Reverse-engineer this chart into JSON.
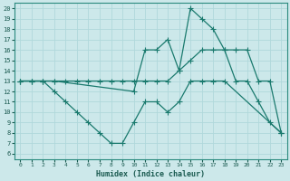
{
  "xlabel": "Humidex (Indice chaleur)",
  "bg_color": "#cce8ea",
  "grid_color": "#b0d8db",
  "line_color": "#1a7a6e",
  "xlim_min": -0.5,
  "xlim_max": 23.5,
  "ylim_min": 5.5,
  "ylim_max": 20.5,
  "yticks": [
    6,
    7,
    8,
    9,
    10,
    11,
    12,
    13,
    14,
    15,
    16,
    17,
    18,
    19,
    20
  ],
  "xticks": [
    0,
    1,
    2,
    3,
    4,
    5,
    6,
    7,
    8,
    9,
    10,
    11,
    12,
    13,
    14,
    15,
    16,
    17,
    18,
    19,
    20,
    21,
    22,
    23
  ],
  "line1_x": [
    0,
    1,
    2,
    3,
    10,
    11,
    12,
    13,
    14,
    15,
    16,
    17,
    18,
    19,
    20,
    21,
    22,
    23
  ],
  "line1_y": [
    13,
    13,
    13,
    13,
    12,
    16,
    16,
    17,
    14,
    20,
    19,
    18,
    16,
    13,
    13,
    11,
    9,
    8
  ],
  "line2_x": [
    0,
    1,
    2,
    3,
    4,
    5,
    6,
    7,
    8,
    9,
    10,
    11,
    12,
    13,
    14,
    15,
    16,
    17,
    18,
    19,
    20,
    21,
    22,
    23
  ],
  "line2_y": [
    13,
    13,
    13,
    13,
    13,
    13,
    13,
    13,
    13,
    13,
    13,
    13,
    13,
    13,
    14,
    15,
    16,
    16,
    16,
    16,
    16,
    13,
    13,
    8
  ],
  "line3_x": [
    0,
    1,
    2,
    3,
    4,
    5,
    6,
    7,
    8,
    9,
    10,
    11,
    12,
    13,
    14,
    15,
    16,
    17,
    18,
    23
  ],
  "line3_y": [
    13,
    13,
    13,
    12,
    11,
    10,
    9,
    8,
    7,
    7,
    9,
    11,
    11,
    10,
    11,
    13,
    13,
    13,
    13,
    8
  ]
}
